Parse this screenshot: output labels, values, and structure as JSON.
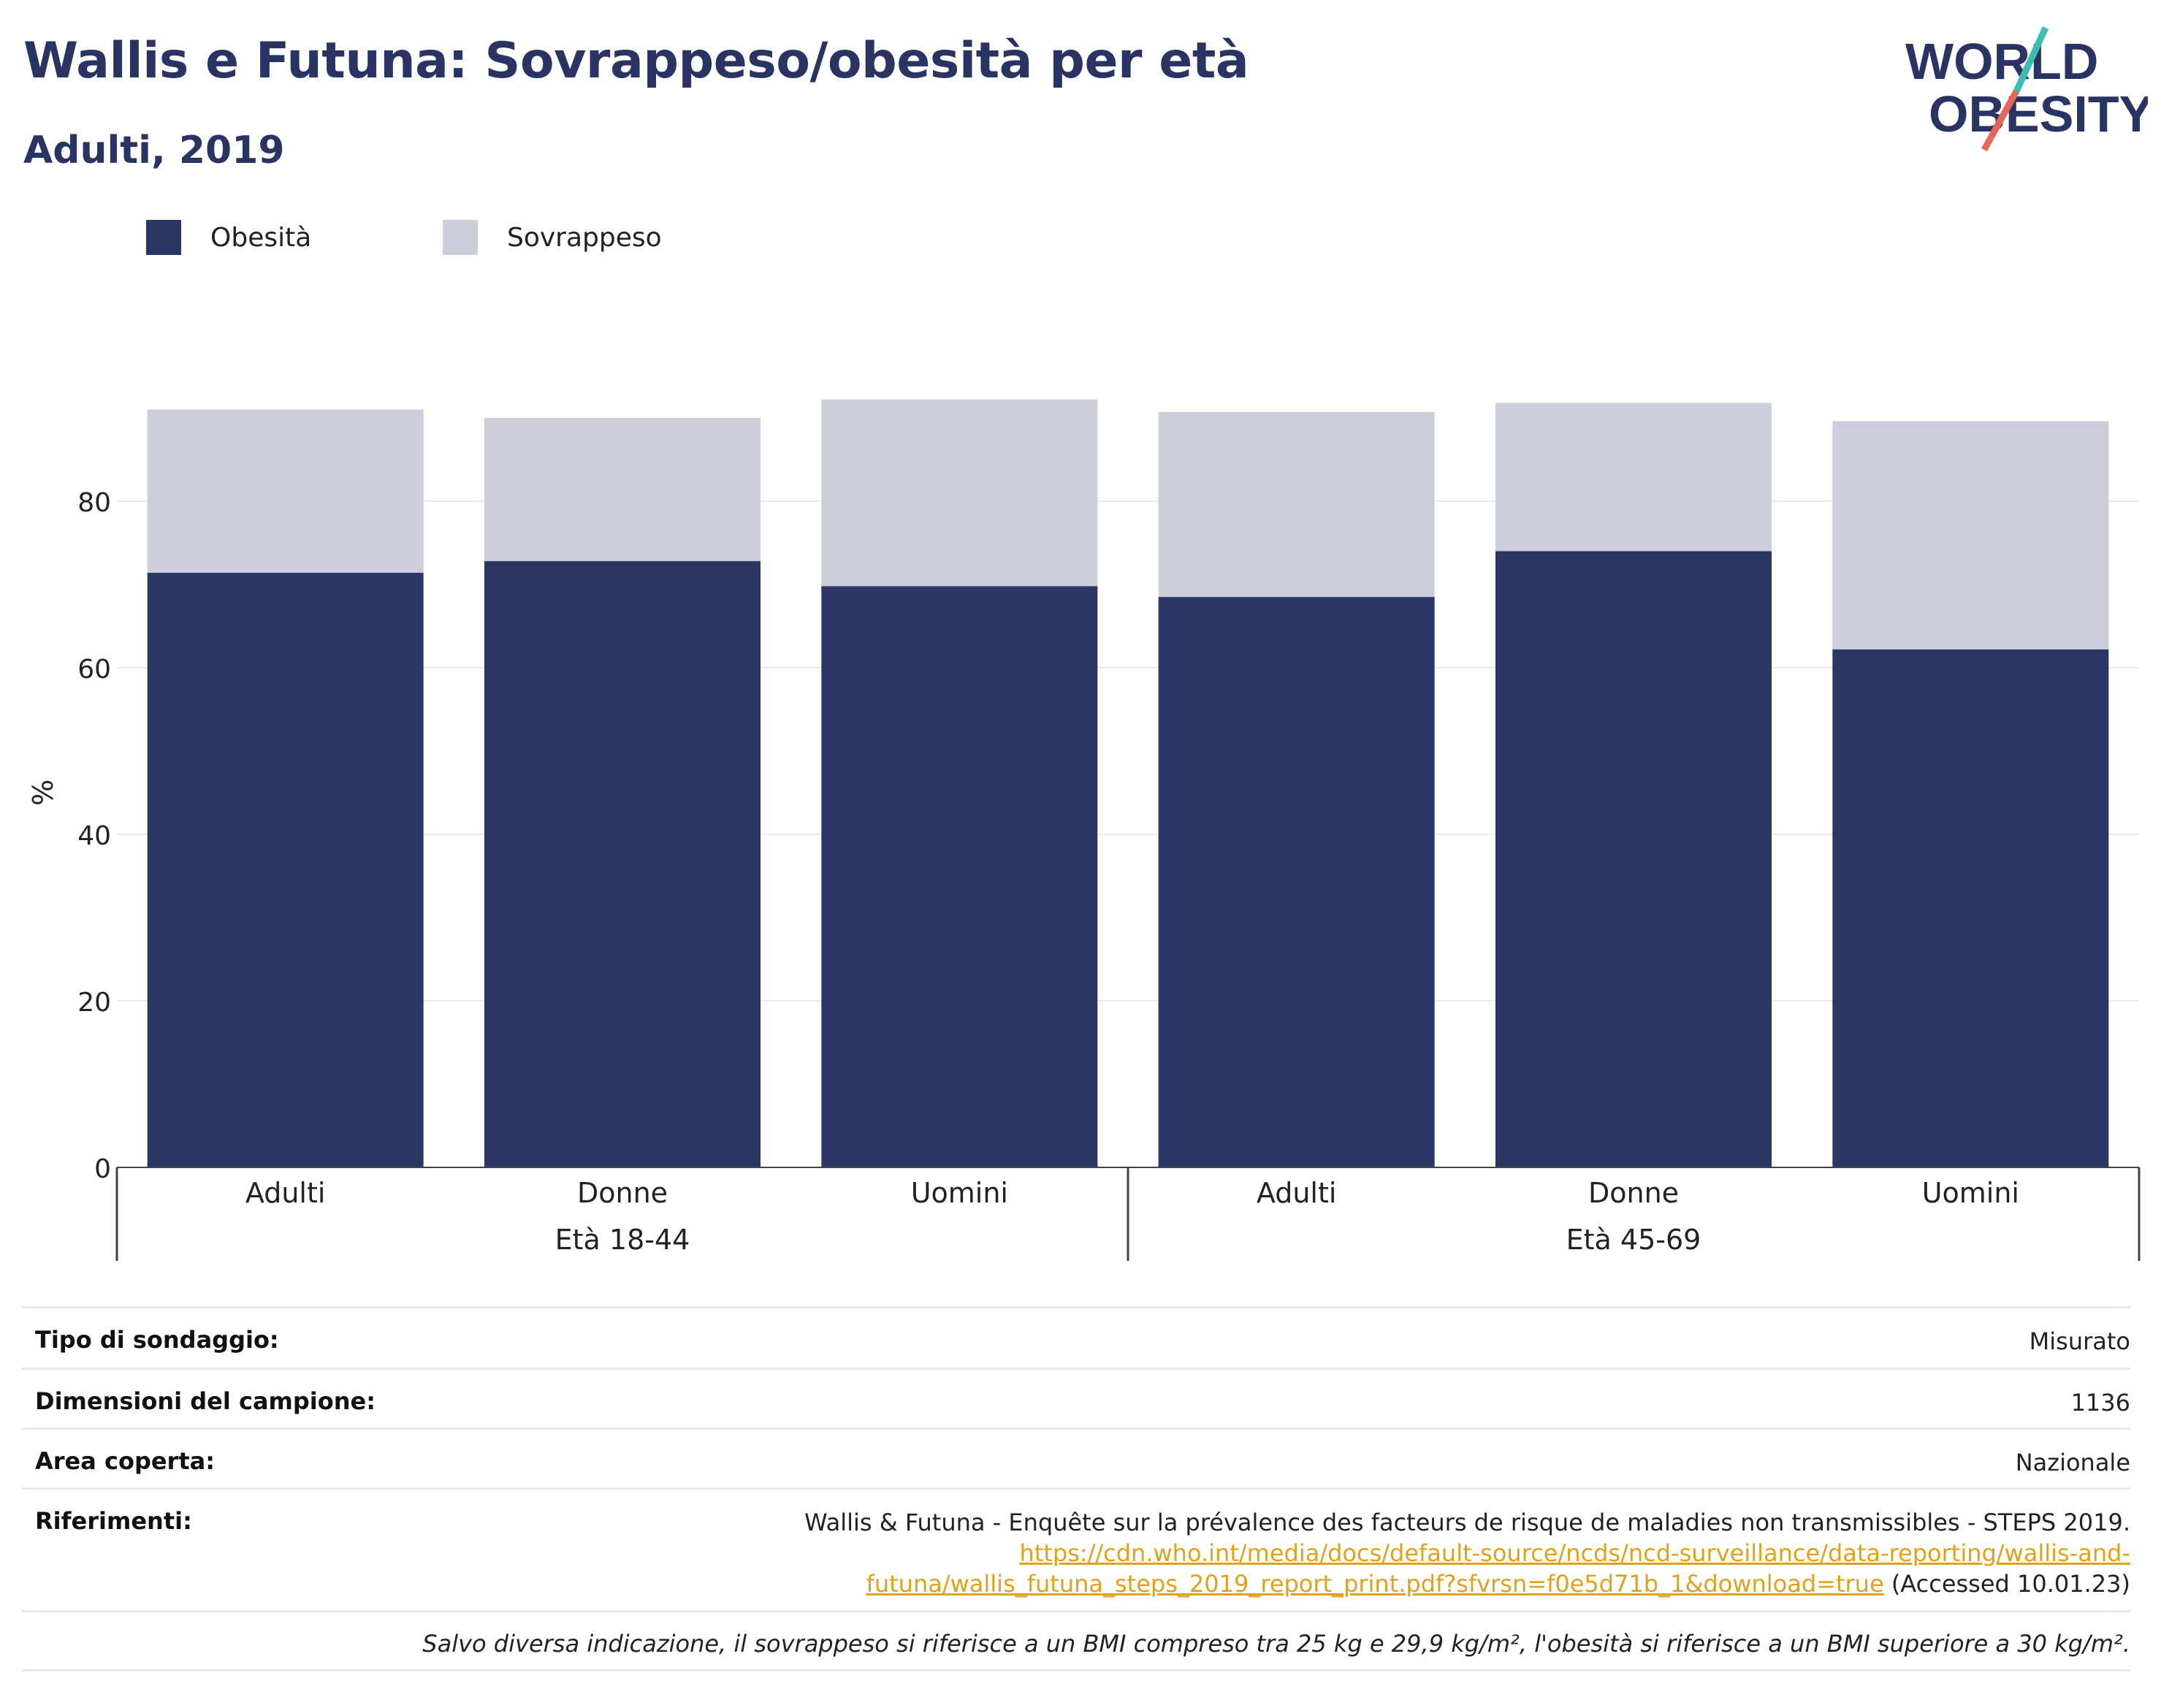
{
  "header": {
    "title": "Wallis e Futuna: Sovrappeso/obesità per età",
    "subtitle": "Adulti, 2019"
  },
  "logo": {
    "line1": "WORLD",
    "line2": "OBESITY",
    "accent_teal": "#3bbdb5",
    "accent_coral": "#e2685a",
    "text_color": "#2a3462"
  },
  "colors": {
    "obesity": "#2a3663",
    "overweight": "#cbcdd9",
    "title": "#2a3462",
    "link": "#e0a21b"
  },
  "chart_data": {
    "type": "bar",
    "stacked": true,
    "ylabel": "%",
    "ylim": [
      0,
      95
    ],
    "yticks": [
      0,
      20,
      40,
      60,
      80
    ],
    "grid": true,
    "legend_position": "top-left",
    "groups": [
      {
        "label": "Età 18-44",
        "categories": [
          "Adulti",
          "Donne",
          "Uomini"
        ]
      },
      {
        "label": "Età 45-69",
        "categories": [
          "Adulti",
          "Donne",
          "Uomini"
        ]
      }
    ],
    "categories": [
      "Adulti",
      "Donne",
      "Uomini",
      "Adulti",
      "Donne",
      "Uomini"
    ],
    "series": [
      {
        "name": "Obesità",
        "values": [
          71.4,
          72.8,
          69.8,
          68.5,
          74.0,
          62.2
        ]
      },
      {
        "name": "Sovrappeso",
        "values": [
          19.6,
          17.2,
          22.4,
          22.2,
          17.8,
          27.4
        ]
      }
    ]
  },
  "info": {
    "rows": [
      {
        "key": "Tipo di sondaggio:",
        "value": "Misurato"
      },
      {
        "key": "Dimensioni del campione:",
        "value": "1136"
      },
      {
        "key": "Area coperta:",
        "value": "Nazionale"
      }
    ],
    "references": {
      "key": "Riferimenti:",
      "text": "Wallis & Futuna - Enquête sur la prévalence des facteurs de risque de maladies non transmissibles - STEPS 2019.",
      "link_line1": "https://cdn.who.int/media/docs/default-source/ncds/ncd-surveillance/data-reporting/wallis-and-",
      "link_line2": "futuna/wallis_futuna_steps_2019_report_print.pdf?sfvrsn=f0e5d71b_1&download=true",
      "accessed": " (Accessed 10.01.23)"
    },
    "note": "Salvo diversa indicazione, il sovrappeso si riferisce a un BMI compreso tra 25 kg e 29,9 kg/m², l'obesità si riferisce a un BMI superiore a 30 kg/m²."
  }
}
